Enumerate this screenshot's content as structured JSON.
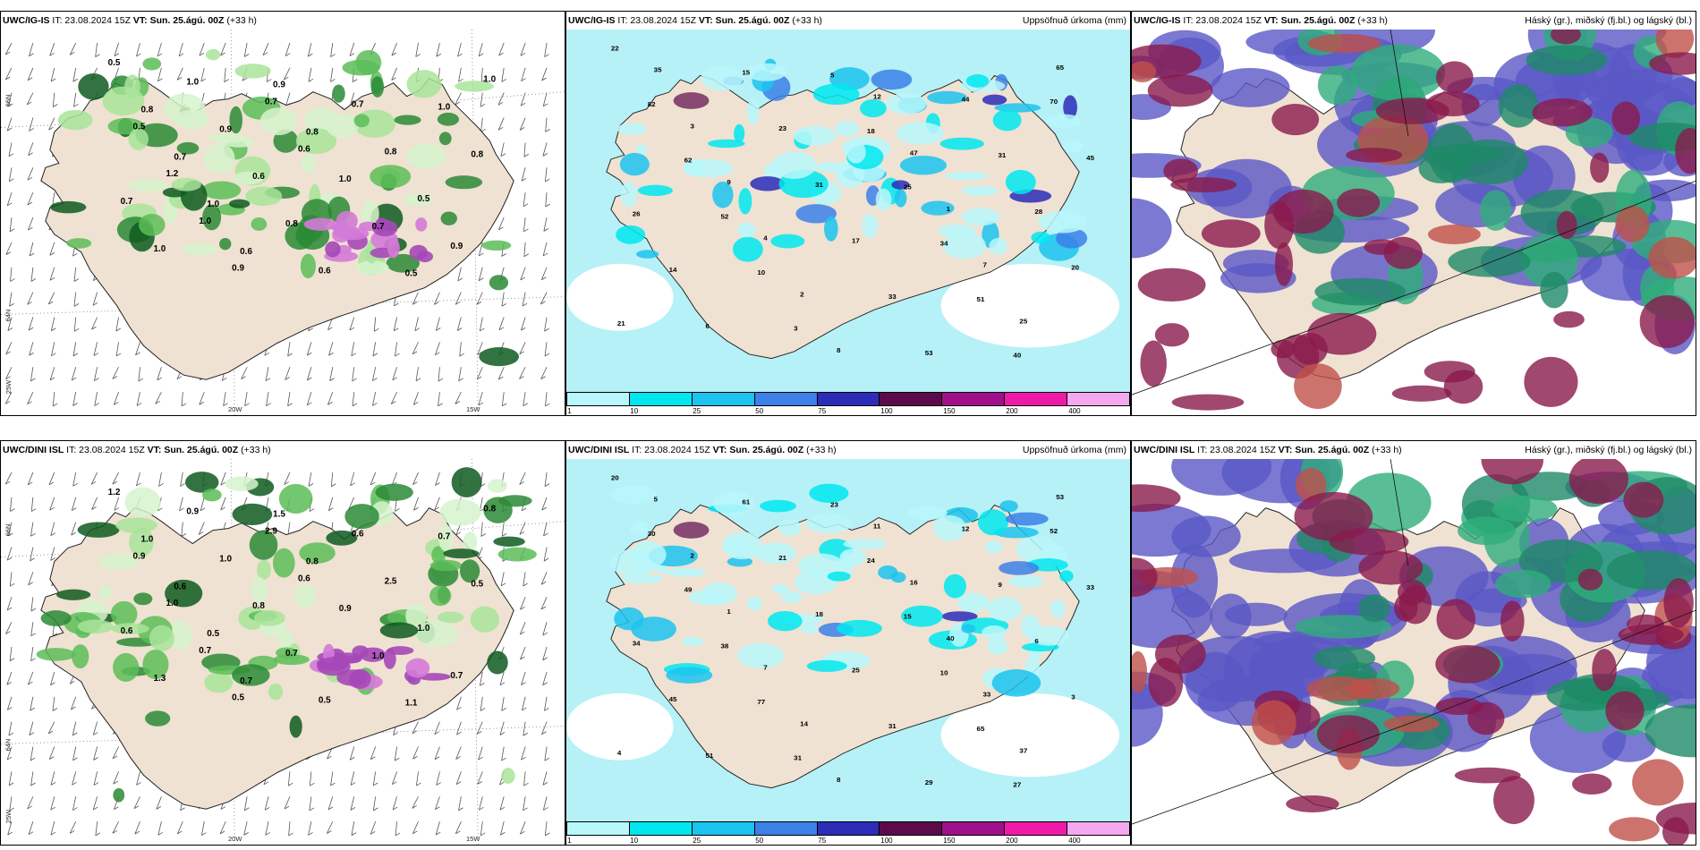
{
  "panels": [
    {
      "model": "UWC/IG-IS",
      "it": "IT: 23.08.2024 15Z",
      "vt_label": "VT:",
      "vt_value": "Sun. 25.ágú. 00Z",
      "lead": "(+33 h)",
      "right_label": "",
      "kind": "cloud-wind"
    },
    {
      "model": "UWC/IG-IS",
      "it": "IT: 23.08.2024 15Z",
      "vt_label": "VT:",
      "vt_value": "Sun. 25.ágú. 00Z",
      "lead": "(+33 h)",
      "right_label": "Uppsöfnuð úrkoma (mm)",
      "kind": "precip"
    },
    {
      "model": "UWC/IG-IS",
      "it": "IT: 23.08.2024 15Z",
      "vt_label": "VT:",
      "vt_value": "Sun. 25.ágú. 00Z",
      "lead": "(+33 h)",
      "right_label": "Háský (gr.), miðský (fj.bl.) og lágský (bl.)",
      "kind": "clouds"
    },
    {
      "model": "UWC/DINI ISL",
      "it": "IT: 23.08.2024 15Z",
      "vt_label": "VT:",
      "vt_value": "Sun. 25.ágú. 00Z",
      "lead": "(+33 h)",
      "right_label": "",
      "kind": "cloud-wind"
    },
    {
      "model": "UWC/DINI ISL",
      "it": "IT: 23.08.2024 15Z",
      "vt_label": "VT:",
      "vt_value": "Sun. 25.ágú. 00Z",
      "lead": "(+33 h)",
      "right_label": "Uppsöfnuð úrkoma (mm)",
      "kind": "precip"
    },
    {
      "model": "UWC/DINI ISL",
      "it": "IT: 23.08.2024 15Z",
      "vt_label": "VT:",
      "vt_value": "Sun. 25.ágú. 00Z",
      "lead": "(+33 h)",
      "right_label": "Háský (gr.), miðský (fj.bl.) og lágský (bl.)",
      "kind": "clouds"
    }
  ],
  "axis_labels": {
    "lat_66": "66N",
    "lat_64": "64N",
    "lon_25": "25W",
    "lon_20": "20W",
    "lon_15": "15W"
  },
  "precip_colorbar": {
    "colors": [
      "#b8f7fb",
      "#00e7f0",
      "#1cc3ef",
      "#3c80e8",
      "#2c2cb8",
      "#5c0a4a",
      "#a0108a",
      "#f01aa8",
      "#f4a8f0"
    ],
    "ticks": [
      "1",
      "10",
      "25",
      "50",
      "75",
      "100",
      "150",
      "200",
      "400"
    ]
  },
  "colors": {
    "land": "#efe2d2",
    "sea_precip": "#b6f1f7",
    "high_cloud": "#8a1a4c",
    "mid_cloud": "#1e8a66",
    "low_cloud": "#5a58c6"
  },
  "label_sets": {
    "ig_cloud": [
      "0.5",
      "0.8",
      "0.7",
      "1.0",
      "0.6",
      "0.9",
      "0.8",
      "1.0",
      "0.7",
      "0.5",
      "1.0",
      "0.8",
      "0.7",
      "1.0",
      "1.0",
      "0.9",
      "0.6",
      "0.8",
      "0.6",
      "0.7",
      "0.8",
      "0.5",
      "0.9",
      "1.0",
      "0.5",
      "1.2",
      "1.0",
      "0.9",
      "0.7",
      "0.6"
    ],
    "dini_cloud": [
      "1.2",
      "1.0",
      "0.6",
      "0.5",
      "0.7",
      "1.5",
      "0.8",
      "0.9",
      "1.0",
      "1.1",
      "0.7",
      "0.5",
      "0.6",
      "1.3",
      "0.9",
      "1.0",
      "0.8",
      "0.7",
      "0.5",
      "0.6",
      "2.5",
      "1.0",
      "0.7",
      "0.8",
      "0.9",
      "1.0",
      "0.7",
      "0.5",
      "2.9",
      "0.6"
    ],
    "ig_precip": [
      "22",
      "82",
      "62",
      "52",
      "10",
      "3",
      "5",
      "18",
      "25",
      "34",
      "51",
      "40",
      "70",
      "45",
      "26",
      "14",
      "6",
      "15",
      "23",
      "31",
      "17",
      "33",
      "53",
      "44",
      "31",
      "28",
      "20",
      "21",
      "35",
      "3",
      "9",
      "4",
      "2",
      "8",
      "12",
      "47",
      "1",
      "7",
      "25",
      "65"
    ],
    "dini_precip": [
      "20",
      "30",
      "49",
      "38",
      "77",
      "31",
      "23",
      "24",
      "15",
      "10",
      "65",
      "27",
      "52",
      "33",
      "34",
      "45",
      "51",
      "61",
      "21",
      "18",
      "25",
      "31",
      "29",
      "12",
      "9",
      "6",
      "3",
      "4",
      "5",
      "2",
      "1",
      "7",
      "14",
      "8",
      "11",
      "16",
      "40",
      "33",
      "37",
      "53"
    ]
  }
}
